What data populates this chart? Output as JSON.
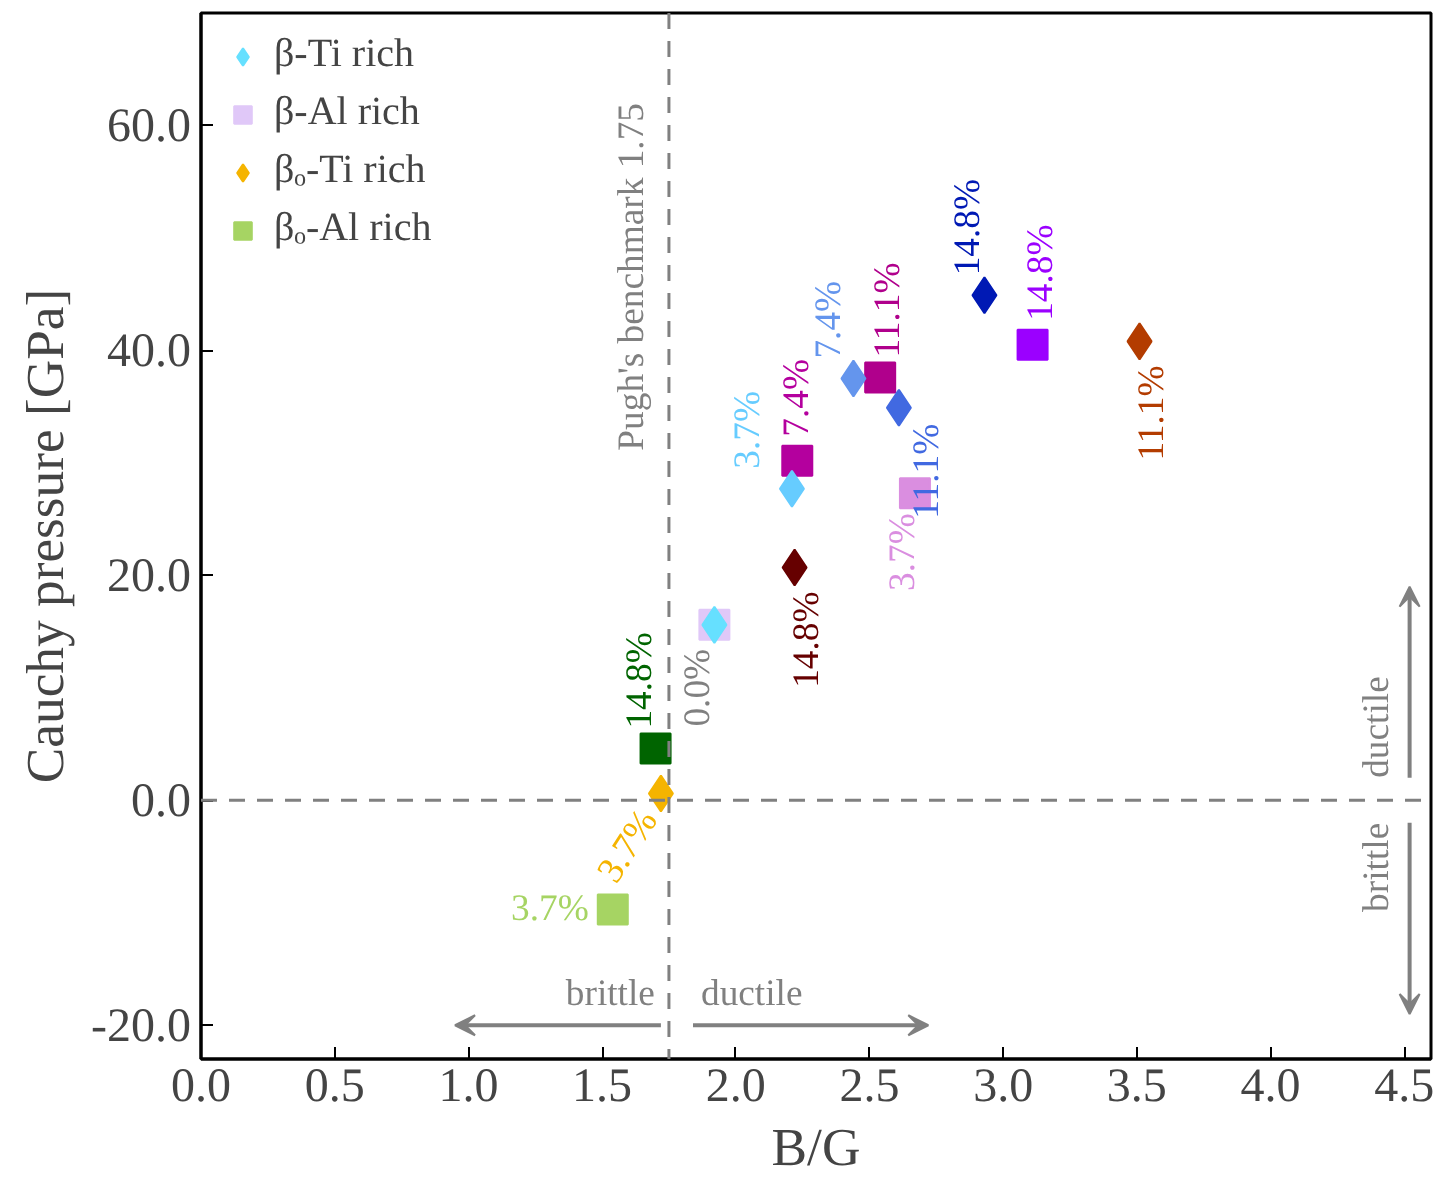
{
  "chart_data": {
    "type": "scatter",
    "xlabel": "B/G",
    "ylabel": "Cauchy pressure [GPa]",
    "xlim": [
      0,
      4.6
    ],
    "ylim": [
      -23,
      70
    ],
    "xticks": [
      {
        "value": 0,
        "label": "0.0"
      },
      {
        "value": 0.5,
        "label": "0.5"
      },
      {
        "value": 1,
        "label": "1.0"
      },
      {
        "value": 1.5,
        "label": "1.5"
      },
      {
        "value": 2,
        "label": "2.0"
      },
      {
        "value": 2.5,
        "label": "2.5"
      },
      {
        "value": 3,
        "label": "3.0"
      },
      {
        "value": 3.5,
        "label": "3.5"
      },
      {
        "value": 4,
        "label": "4.0"
      },
      {
        "value": 4.5,
        "label": "4.5"
      }
    ],
    "yticks": [
      {
        "value": -20,
        "label": "-20.0"
      },
      {
        "value": 0,
        "label": "0.0"
      },
      {
        "value": 20,
        "label": "20.0"
      },
      {
        "value": 40,
        "label": "40.0"
      },
      {
        "value": 60,
        "label": "60.0"
      }
    ],
    "grid": false,
    "legend": "top left",
    "series": [
      {
        "name": "β-Ti rich",
        "marker": "diamond",
        "color": "#66e0ff",
        "x": [
          1.92,
          2.21,
          2.44,
          2.61,
          2.93
        ],
        "values": [
          15.6,
          27.7,
          37.5,
          34.9,
          44.9
        ],
        "colors": [
          "#66e0ff",
          "#66ccff",
          "#6495ed",
          "#4169e1",
          "#0019b4"
        ]
      },
      {
        "name": "β-Al rich",
        "marker": "square",
        "color": "#e0c8f8",
        "x": [
          1.92,
          2.67,
          2.23,
          2.54,
          3.11
        ],
        "values": [
          15.6,
          27.3,
          30.2,
          37.6,
          40.5
        ],
        "colors": [
          "#e0c8f8",
          "#da8ee0",
          "#b4009e",
          "#b0008c",
          "#9b00ff"
        ]
      },
      {
        "name": "βₒ-Ti rich",
        "marker": "diamond",
        "color": "#f5b400",
        "x": [
          1.72,
          2.22,
          3.51
        ],
        "values": [
          0.6,
          20.7,
          40.8
        ],
        "colors": [
          "#f5b400",
          "#660000",
          "#b33c00"
        ]
      },
      {
        "name": "βₒ-Al rich",
        "marker": "square",
        "color": "#a6d463",
        "x": [
          1.54,
          1.7
        ],
        "values": [
          -9.7,
          4.6
        ],
        "colors": [
          "#a6d463",
          "#006400"
        ]
      }
    ],
    "ref_lines": [
      {
        "axis": "x",
        "value": 1.75,
        "label": "Pugh's benchmark 1.75",
        "color": "#808080",
        "line_style": "dashed"
      },
      {
        "axis": "y",
        "value": 0,
        "label": null,
        "color": "#808080",
        "line_style": "dashed"
      }
    ],
    "annotations": [
      {
        "text": "3.7%",
        "x": 2.21,
        "y": 27.7
      },
      {
        "text": "7.4%",
        "x": 2.44,
        "y": 37.5
      },
      {
        "text": "11.1%",
        "x": 2.61,
        "y": 34.9
      },
      {
        "text": "14.8%",
        "x": 2.93,
        "y": 44.9
      },
      {
        "text": "0.0%",
        "x": 1.92,
        "y": 15.6
      },
      {
        "text": "3.7%",
        "x": 2.67,
        "y": 27.3
      },
      {
        "text": "7.4%",
        "x": 2.23,
        "y": 30.2
      },
      {
        "text": "11.1%",
        "x": 2.54,
        "y": 37.6
      },
      {
        "text": "14.8%",
        "x": 3.11,
        "y": 40.5
      },
      {
        "text": "3.7%",
        "x": 1.72,
        "y": 0.6
      },
      {
        "text": "14.8%",
        "x": 2.22,
        "y": 20.7
      },
      {
        "text": "11.1%",
        "x": 3.51,
        "y": 40.8
      },
      {
        "text": "3.7%",
        "x": 1.54,
        "y": -9.7
      },
      {
        "text": "14.8%",
        "x": 1.7,
        "y": 4.6
      },
      "brittle",
      "ductile",
      "ductile",
      "brittle"
    ]
  }
}
